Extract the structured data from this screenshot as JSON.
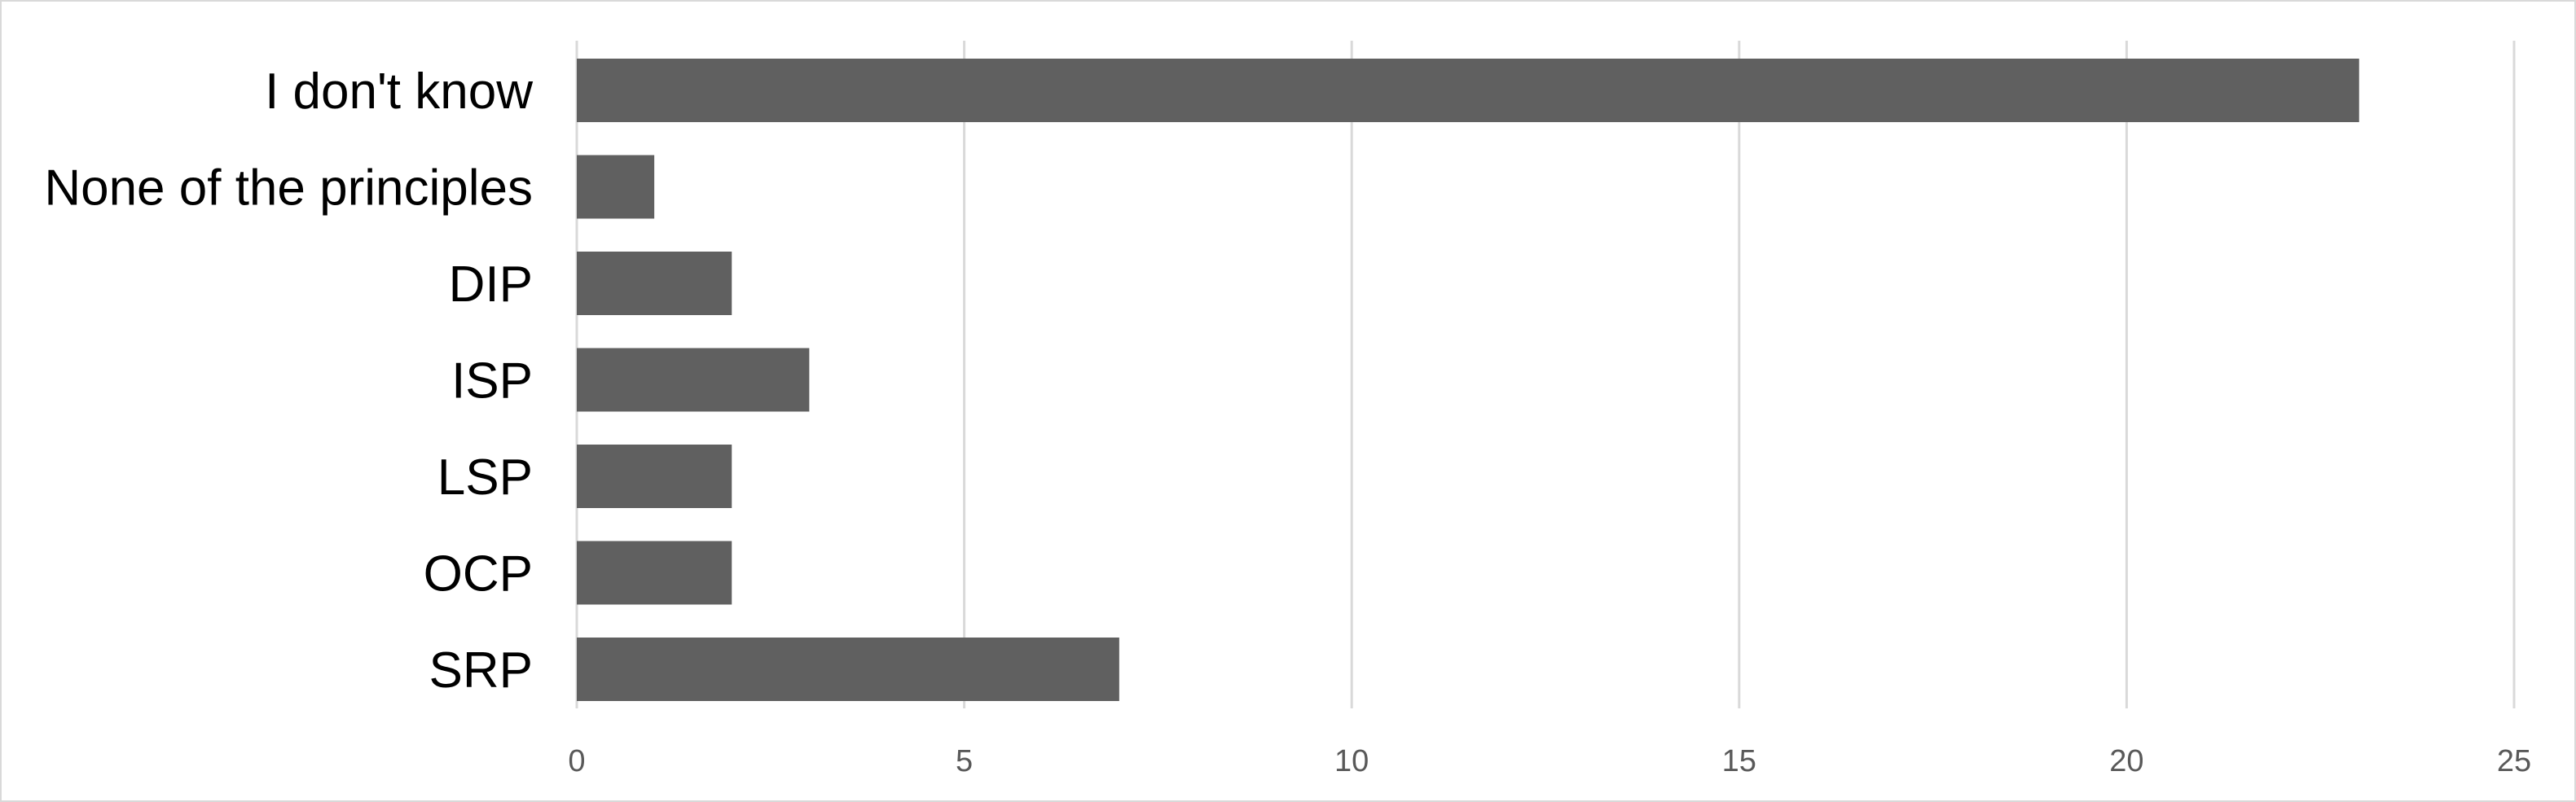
{
  "chart_data": {
    "type": "bar",
    "orientation": "horizontal",
    "categories": [
      "I don't know",
      "None of the principles",
      "DIP",
      "ISP",
      "LSP",
      "OCP",
      "SRP"
    ],
    "values": [
      23,
      1,
      2,
      3,
      2,
      2,
      7
    ],
    "title": "",
    "xlabel": "",
    "ylabel": "",
    "xlim": [
      0,
      25
    ],
    "xticks": [
      0,
      5,
      10,
      15,
      20,
      25
    ],
    "grid": true,
    "legend": "none",
    "bar_color": "#606060",
    "grid_color": "#d9d9d9",
    "tick_label_color": "#595959",
    "category_label_color": "#000000"
  }
}
